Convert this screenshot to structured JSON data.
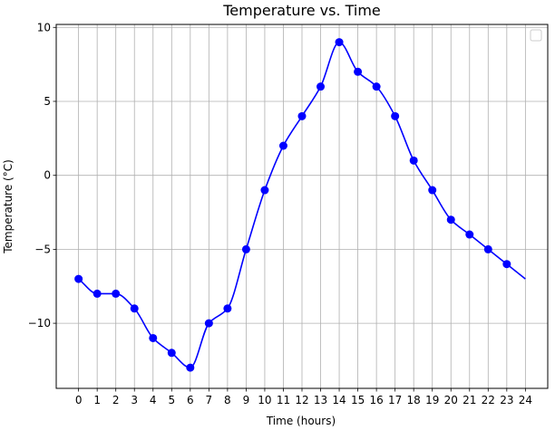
{
  "chart_data": {
    "type": "line",
    "title": "Temperature vs. Time",
    "xlabel": "Time (hours)",
    "ylabel": "Temperature (°C)",
    "x_ticks": [
      0,
      1,
      2,
      3,
      4,
      5,
      6,
      7,
      8,
      9,
      10,
      11,
      12,
      13,
      14,
      15,
      16,
      17,
      18,
      19,
      20,
      21,
      22,
      23,
      24
    ],
    "y_ticks": [
      -10,
      -5,
      0,
      5,
      10
    ],
    "xlim": [
      -1.2,
      25.2
    ],
    "ylim": [
      -14.4,
      10.2
    ],
    "grid": true,
    "legend": "top-right, empty",
    "series": [
      {
        "color": "#0000ff",
        "line_x": [
          0,
          1,
          2,
          3,
          4,
          5,
          6,
          7,
          8,
          9,
          10,
          11,
          12,
          13,
          14,
          15,
          16,
          17,
          18,
          19,
          20,
          21,
          22,
          23,
          24
        ],
        "line_y": [
          -7,
          -8,
          -8,
          -9,
          -11,
          -12,
          -13,
          -10,
          -9,
          -5,
          -1,
          2,
          4,
          6,
          9,
          7,
          6,
          4,
          1,
          -1,
          -3,
          -4,
          -5,
          -6,
          -7
        ],
        "marker_x": [
          0,
          1,
          2,
          3,
          4,
          5,
          6,
          7,
          8,
          9,
          10,
          11,
          12,
          13,
          14,
          15,
          16,
          17,
          18,
          19,
          20,
          21,
          22,
          23
        ],
        "marker_y": [
          -7,
          -8,
          -8,
          -9,
          -11,
          -12,
          -13,
          -10,
          -9,
          -5,
          -1,
          2,
          4,
          6,
          9,
          7,
          6,
          4,
          1,
          -1,
          -3,
          -4,
          -5,
          -6
        ]
      }
    ]
  }
}
